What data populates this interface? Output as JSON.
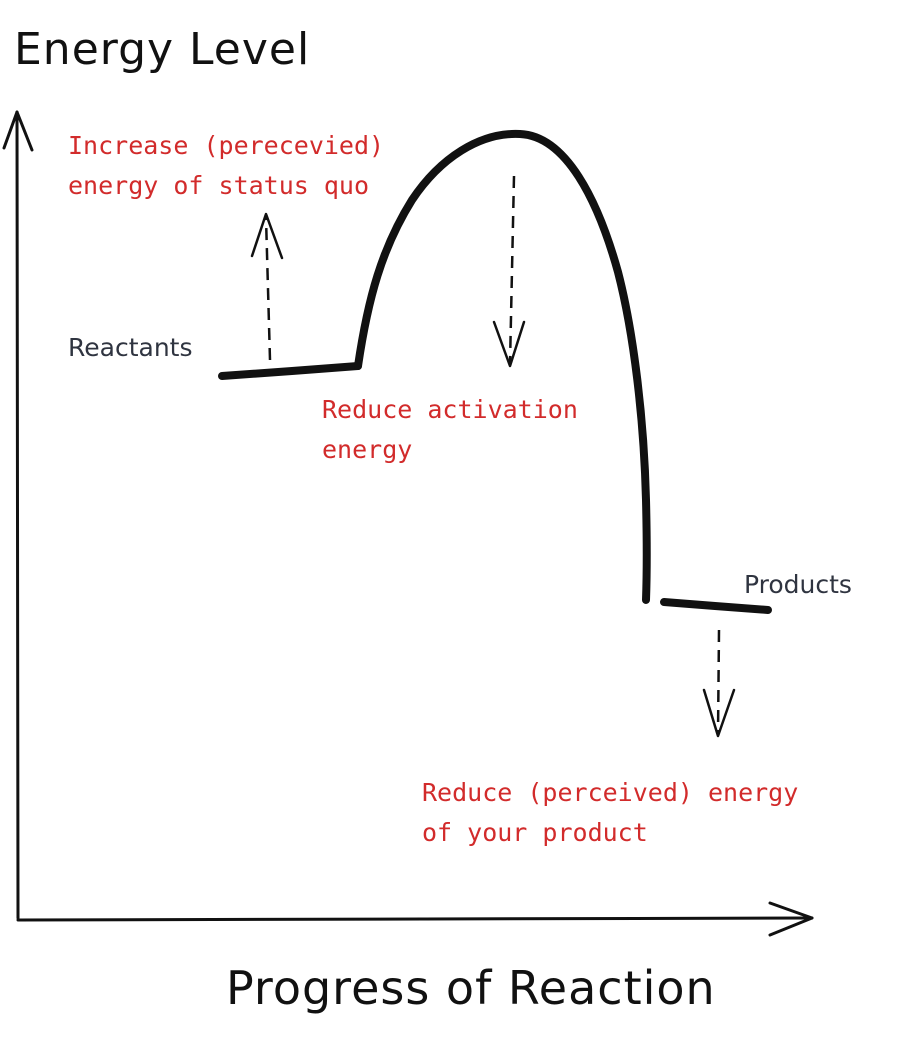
{
  "axes": {
    "y_title": "Energy Level",
    "x_title": "Progress of Reaction"
  },
  "states": {
    "reactants": "Reactants",
    "products": "Products"
  },
  "annotations": {
    "status_quo": [
      "Increase (perecevied)",
      "energy of status quo"
    ],
    "activation": [
      "Reduce activation",
      "energy"
    ],
    "product": [
      "Reduce (perceived) energy",
      "of your product"
    ]
  },
  "colors": {
    "ink": "#111111",
    "annotation": "#d22b2b",
    "state_label": "#2f3440"
  }
}
